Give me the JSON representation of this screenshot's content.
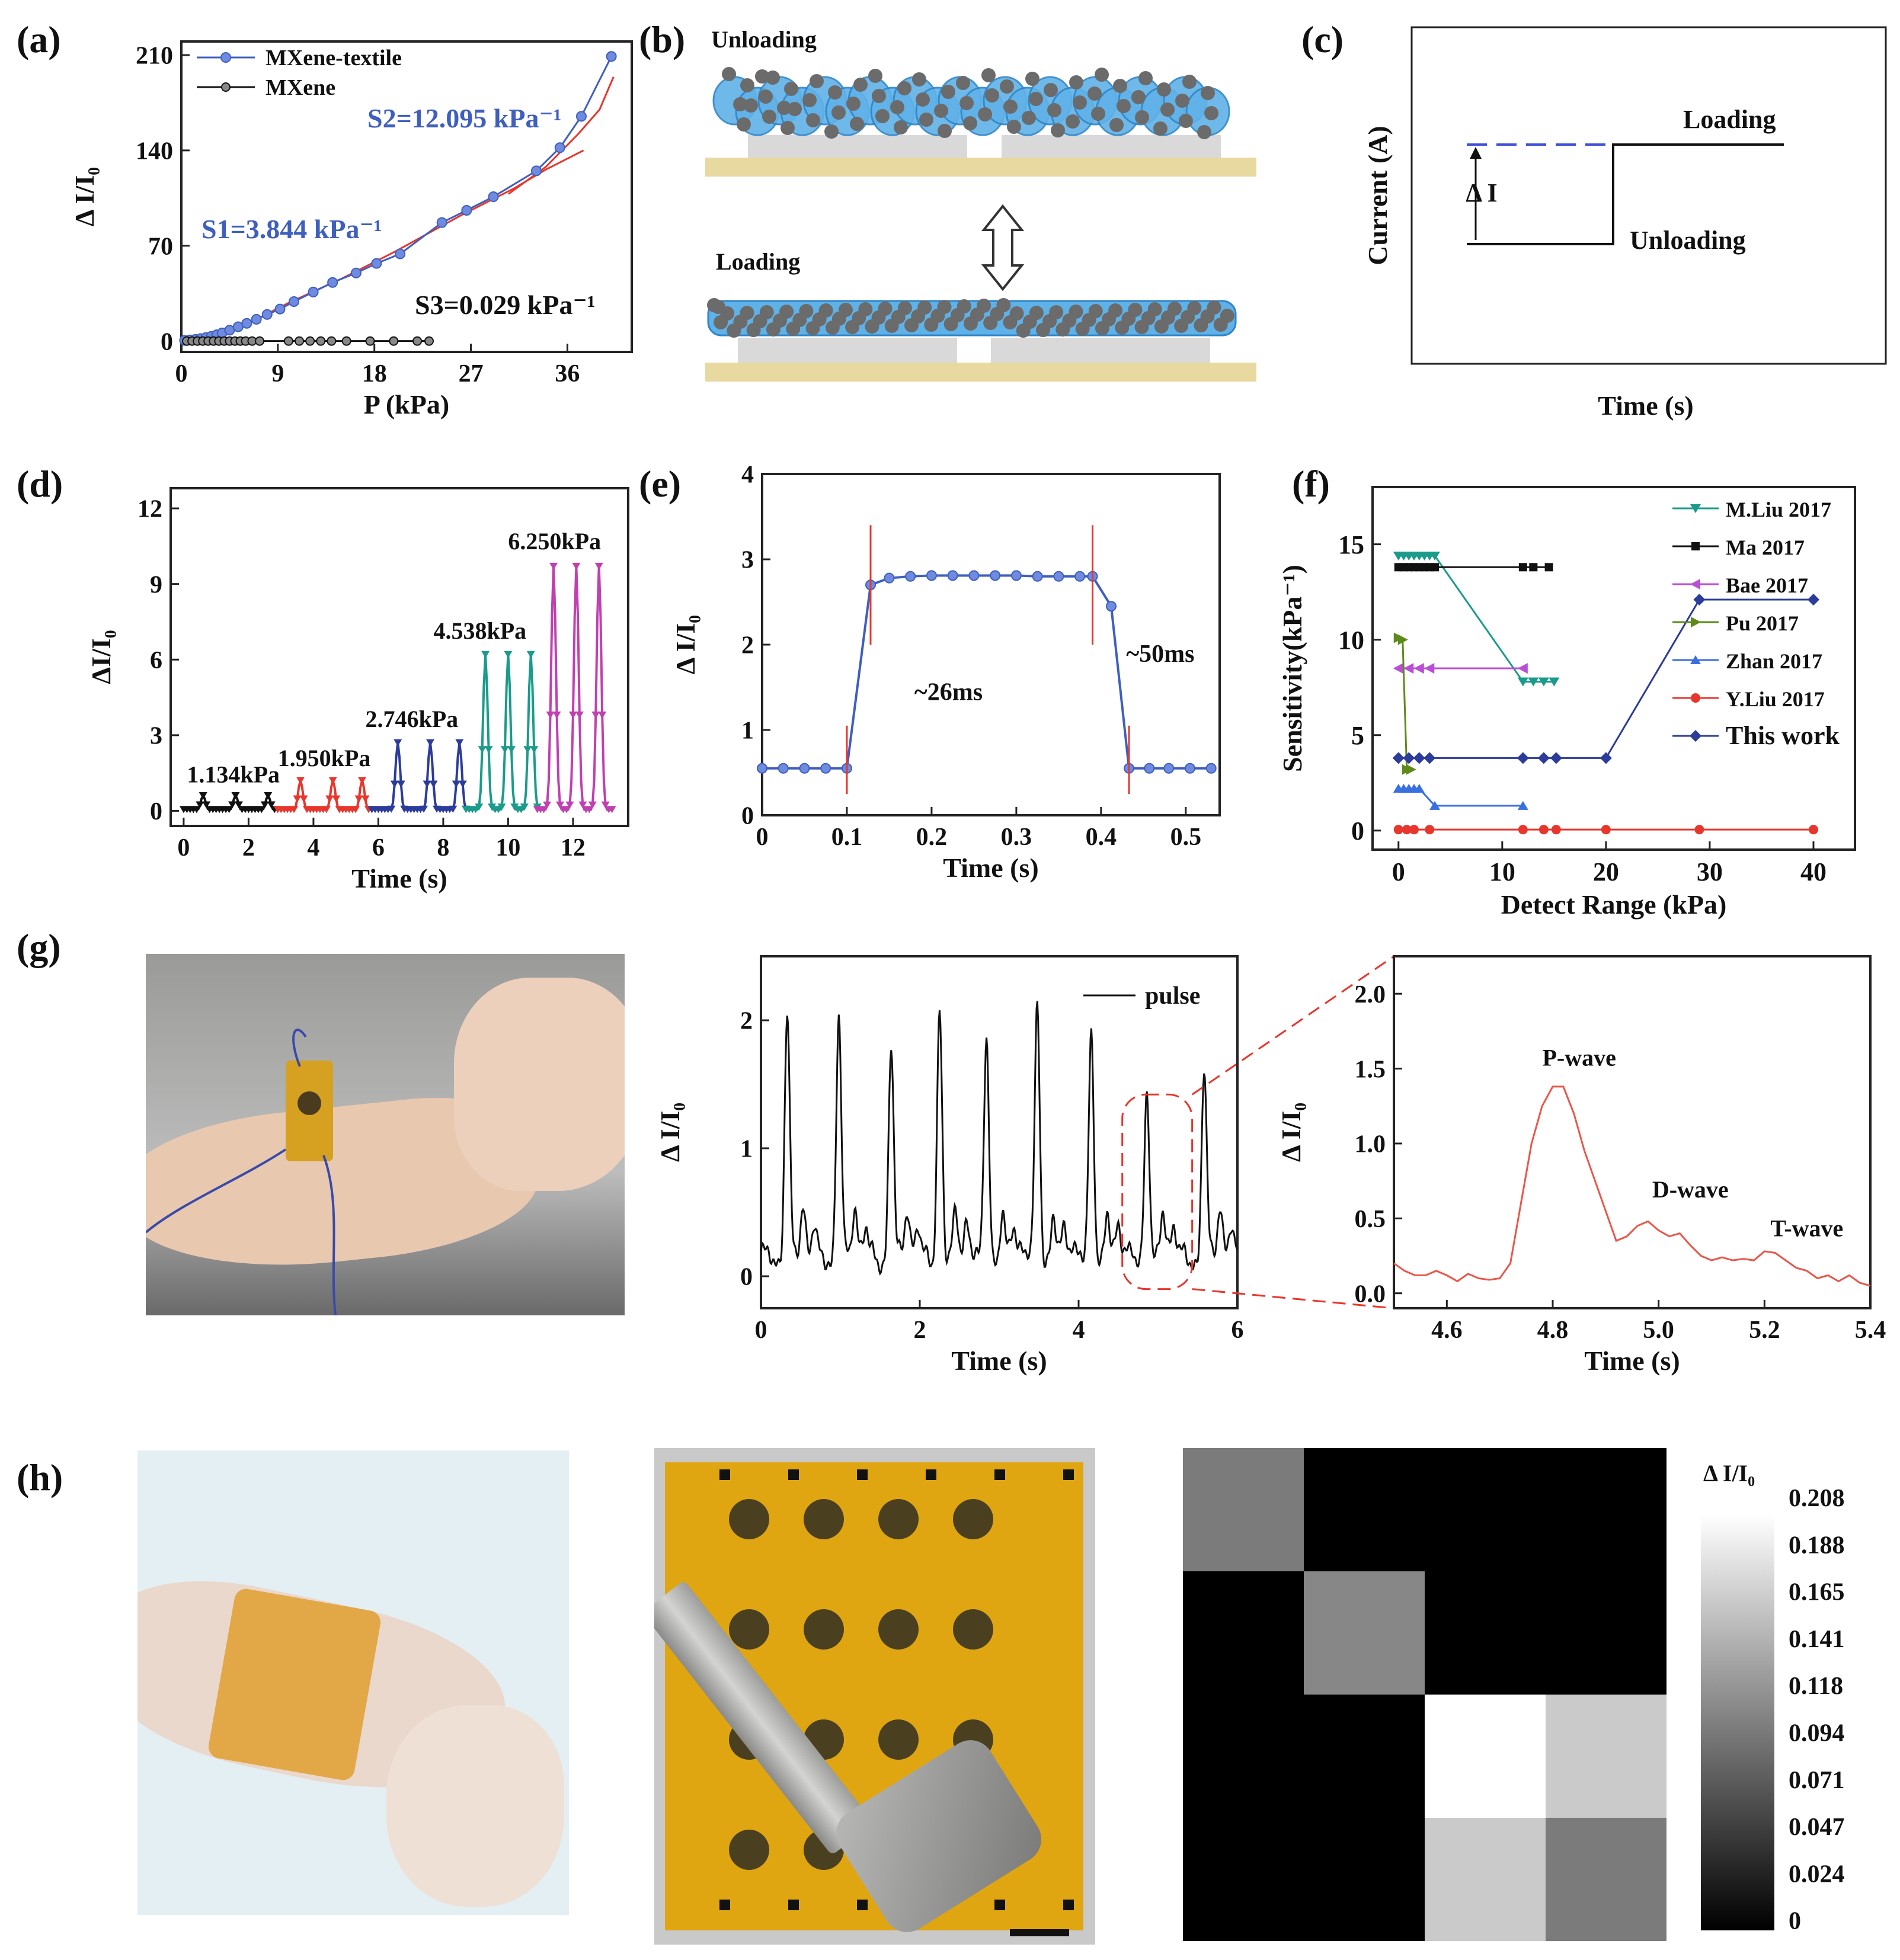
{
  "panels": {
    "a": "(a)",
    "b": "(b)",
    "c": "(c)",
    "d": "(d)",
    "e": "(e)",
    "f": "(f)",
    "g": "(g)",
    "h": "(h)"
  },
  "colors": {
    "blue": "#3f5fbf",
    "black": "#111111",
    "red": "#e8362c",
    "green": "#1a9a7a",
    "magenta": "#c040b0",
    "teal": "#1a9b8b",
    "navy": "#2b3c9a",
    "violet": "#b84fd6",
    "olive": "#5e8a1a",
    "pulse_red": "#e8574a"
  },
  "schematic_b": {
    "top_label": "Unloading",
    "bottom_label": "Loading"
  },
  "schematic_c": {
    "ylabel": "Current (A)",
    "xlabel": "Time (s)",
    "loading": "Loading",
    "unloading": "Unloading",
    "delta": "Δ I"
  },
  "photos": {
    "wrist_g": "photo-wrist-sensor",
    "wrist_h": "photo-wrist-array",
    "key_array": "photo-key-on-array"
  },
  "chart_data": [
    {
      "id": "a",
      "type": "line",
      "xlabel": "P (kPa)",
      "ylabel": "Δ I/I₀",
      "xlim": [
        0,
        42
      ],
      "ylim": [
        -8,
        220
      ],
      "xticks": [
        0,
        9,
        18,
        27,
        36
      ],
      "yticks": [
        0,
        70,
        140,
        210
      ],
      "legend": [
        "MXene-textile",
        "MXene"
      ],
      "annotations": [
        "S2=12.095 kPa⁻¹",
        "S1=3.844 kPa⁻¹",
        "S3=0.029 kPa⁻¹"
      ],
      "series": [
        {
          "name": "MXene-textile",
          "x": [
            0.3,
            0.8,
            1.3,
            1.8,
            2.3,
            2.8,
            3.3,
            3.8,
            4.5,
            5.3,
            6.1,
            7.0,
            8.0,
            9.2,
            10.5,
            12.3,
            14.1,
            16.3,
            18.2,
            20.4,
            24.3,
            26.6,
            29.1,
            33.1,
            35.3,
            37.3,
            40.1
          ],
          "y": [
            0.5,
            0.8,
            1.2,
            1.8,
            2.6,
            3.5,
            4.6,
            6,
            8,
            10.5,
            13,
            16,
            19.5,
            23.5,
            29,
            36,
            43,
            50,
            57,
            64,
            87,
            96,
            106,
            125,
            142,
            165,
            209
          ]
        },
        {
          "name": "MXene",
          "x": [
            0.5,
            1,
            1.5,
            2,
            2.5,
            3,
            3.5,
            4,
            4.5,
            5,
            5.5,
            6,
            6.6,
            7.3,
            10,
            11,
            12,
            13,
            14,
            15.4,
            17.6,
            19.8,
            22,
            23.1
          ],
          "y": [
            0,
            0,
            0,
            0,
            0,
            0,
            0,
            0,
            0,
            0,
            0,
            0,
            0,
            0,
            0,
            0,
            0,
            0,
            0,
            0,
            0,
            0,
            0,
            0
          ]
        }
      ]
    },
    {
      "id": "d",
      "type": "line",
      "xlabel": "Time (s)",
      "ylabel": "ΔI/I₀",
      "xlim": [
        -0.4,
        13.7
      ],
      "ylim": [
        -0.6,
        12.8
      ],
      "xticks": [
        0,
        2,
        4,
        6,
        8,
        10,
        12
      ],
      "yticks": [
        0,
        3,
        6,
        9,
        12
      ],
      "labels": [
        "1.134kPa",
        "1.950kPa",
        "2.746kPa",
        "4.538kPa",
        "6.250kPa"
      ],
      "series": [
        {
          "name": "1.134kPa",
          "t_start": 0,
          "t_end": 2.9,
          "peak_times": [
            0.6,
            1.6,
            2.6
          ],
          "peak": 0.6
        },
        {
          "name": "1.950kPa",
          "t_start": 2.9,
          "t_end": 5.8,
          "peak_times": [
            3.6,
            4.6,
            5.5
          ],
          "peak": 1.2
        },
        {
          "name": "2.746kPa",
          "t_start": 5.8,
          "t_end": 8.7,
          "peak_times": [
            6.6,
            7.6,
            8.5
          ],
          "peak": 2.7
        },
        {
          "name": "4.538kPa",
          "t_start": 8.7,
          "t_end": 10.9,
          "peak_times": [
            9.3,
            10.0,
            10.7
          ],
          "peak": 6.2
        },
        {
          "name": "6.250kPa",
          "t_start": 10.9,
          "t_end": 13.2,
          "peak_times": [
            11.4,
            12.1,
            12.8
          ],
          "peak": 9.7
        }
      ]
    },
    {
      "id": "e",
      "type": "line",
      "xlabel": "Time (s)",
      "ylabel": "Δ I/I₀",
      "xlim": [
        0,
        0.54
      ],
      "ylim": [
        0,
        4
      ],
      "xticks": [
        0,
        0.1,
        0.2,
        0.3,
        0.4,
        0.5
      ],
      "yticks": [
        0,
        1,
        2,
        3,
        4
      ],
      "annotations": [
        "~26ms",
        "~50ms"
      ],
      "series": [
        {
          "name": "response",
          "x": [
            0,
            0.025,
            0.05,
            0.075,
            0.1,
            0.128,
            0.15,
            0.175,
            0.2,
            0.225,
            0.25,
            0.275,
            0.3,
            0.325,
            0.35,
            0.375,
            0.39,
            0.412,
            0.433,
            0.457,
            0.48,
            0.505,
            0.53
          ],
          "y": [
            0.55,
            0.55,
            0.55,
            0.55,
            0.55,
            2.7,
            2.78,
            2.8,
            2.81,
            2.81,
            2.81,
            2.81,
            2.81,
            2.8,
            2.8,
            2.8,
            2.8,
            2.45,
            0.55,
            0.55,
            0.55,
            0.55,
            0.55
          ]
        }
      ]
    },
    {
      "id": "f",
      "type": "line",
      "xlabel": "Detect Range (kPa)",
      "ylabel": "Sensitivity(kPa⁻¹)",
      "xlim": [
        -2.5,
        44
      ],
      "ylim": [
        -1,
        18
      ],
      "xticks": [
        0,
        10,
        20,
        30,
        40
      ],
      "yticks": [
        0,
        5,
        10,
        15
      ],
      "series": [
        {
          "name": "M.Liu 2017",
          "x": [
            0,
            0.5,
            1,
            1.5,
            2,
            2.5,
            3,
            3.5,
            12,
            13,
            14,
            15
          ],
          "y": [
            14.4,
            14.4,
            14.4,
            14.4,
            14.4,
            14.4,
            14.4,
            14.4,
            7.8,
            7.8,
            7.8,
            7.8
          ]
        },
        {
          "name": "Ma 2017",
          "x": [
            0,
            0.5,
            1,
            1.5,
            2,
            2.5,
            3,
            3.5,
            12,
            13,
            14.5
          ],
          "y": [
            13.8,
            13.8,
            13.8,
            13.8,
            13.8,
            13.8,
            13.8,
            13.8,
            13.8,
            13.8,
            13.8
          ]
        },
        {
          "name": "Bae 2017",
          "x": [
            0,
            1,
            2,
            3,
            12
          ],
          "y": [
            8.5,
            8.5,
            8.5,
            8.5,
            8.5
          ]
        },
        {
          "name": "Pu 2017",
          "x": [
            0,
            0.4,
            0.8,
            1.2
          ],
          "y": [
            10.1,
            10.0,
            3.2,
            3.2
          ]
        },
        {
          "name": "Zhan 2017",
          "x": [
            0,
            0.5,
            1,
            1.5,
            2,
            3.5,
            12
          ],
          "y": [
            2.2,
            2.2,
            2.2,
            2.2,
            2.2,
            1.3,
            1.3
          ]
        },
        {
          "name": "Y.Liu 2017",
          "x": [
            0,
            0.8,
            1.5,
            3,
            12,
            14,
            15.2,
            20,
            29,
            40
          ],
          "y": [
            0.05,
            0.05,
            0.05,
            0.05,
            0.05,
            0.05,
            0.05,
            0.05,
            0.05,
            0.05
          ]
        },
        {
          "name": "This work",
          "x": [
            0,
            1,
            2,
            3,
            12,
            14,
            15.2,
            20,
            29,
            40
          ],
          "y": [
            3.8,
            3.8,
            3.8,
            3.8,
            3.8,
            3.8,
            3.8,
            3.8,
            12.1,
            12.1
          ]
        }
      ]
    },
    {
      "id": "g1",
      "type": "line",
      "xlabel": "Time (s)",
      "ylabel": "Δ I/I₀",
      "xlim": [
        0,
        6
      ],
      "ylim": [
        -0.25,
        2.5
      ],
      "xticks": [
        0,
        2,
        4,
        6
      ],
      "yticks": [
        0,
        1,
        2
      ],
      "legend": [
        "pulse"
      ],
      "peaks": {
        "t": [
          0.33,
          0.98,
          1.64,
          2.25,
          2.84,
          3.48,
          4.16,
          4.86,
          5.58
        ],
        "y": [
          2.0,
          1.98,
          1.75,
          2.0,
          1.82,
          2.06,
          1.85,
          1.4,
          1.55
        ]
      }
    },
    {
      "id": "g2",
      "type": "line",
      "xlabel": "Time (s)",
      "ylabel": "Δ I/I₀",
      "xlim": [
        4.5,
        5.4
      ],
      "ylim": [
        -0.1,
        2.25
      ],
      "xticks": [
        4.6,
        4.8,
        5.0,
        5.2,
        5.4
      ],
      "yticks": [
        0.0,
        0.5,
        1.0,
        1.5,
        2.0
      ],
      "annotations": [
        "P-wave",
        "D-wave",
        "T-wave"
      ],
      "series": [
        {
          "name": "zoom",
          "x": [
            4.5,
            4.52,
            4.54,
            4.56,
            4.58,
            4.6,
            4.62,
            4.64,
            4.66,
            4.68,
            4.7,
            4.72,
            4.74,
            4.76,
            4.78,
            4.8,
            4.82,
            4.84,
            4.86,
            4.88,
            4.9,
            4.92,
            4.94,
            4.96,
            4.98,
            5.0,
            5.02,
            5.04,
            5.06,
            5.08,
            5.1,
            5.12,
            5.14,
            5.16,
            5.18,
            5.2,
            5.22,
            5.24,
            5.26,
            5.28,
            5.3,
            5.32,
            5.34,
            5.36,
            5.38,
            5.4
          ],
          "y": [
            0.2,
            0.15,
            0.12,
            0.12,
            0.15,
            0.12,
            0.08,
            0.13,
            0.1,
            0.09,
            0.1,
            0.2,
            0.6,
            1.0,
            1.25,
            1.38,
            1.38,
            1.2,
            0.95,
            0.75,
            0.55,
            0.35,
            0.38,
            0.45,
            0.48,
            0.42,
            0.38,
            0.4,
            0.32,
            0.25,
            0.22,
            0.24,
            0.22,
            0.23,
            0.22,
            0.28,
            0.27,
            0.22,
            0.17,
            0.15,
            0.1,
            0.12,
            0.08,
            0.12,
            0.07,
            0.05
          ]
        }
      ]
    },
    {
      "id": "h",
      "type": "heatmap",
      "colorbar_label": "Δ I/I₀",
      "colorbar_ticks": [
        "0.208",
        "0.188",
        "0.165",
        "0.141",
        "0.118",
        "0.094",
        "0.071",
        "0.047",
        "0.024",
        "0"
      ],
      "vmax": 0.208,
      "values": [
        [
          0.1,
          0,
          0,
          0
        ],
        [
          0,
          0.11,
          0,
          0
        ],
        [
          0,
          0,
          0.208,
          0.165
        ],
        [
          0,
          0,
          0.165,
          0.1
        ]
      ]
    }
  ]
}
